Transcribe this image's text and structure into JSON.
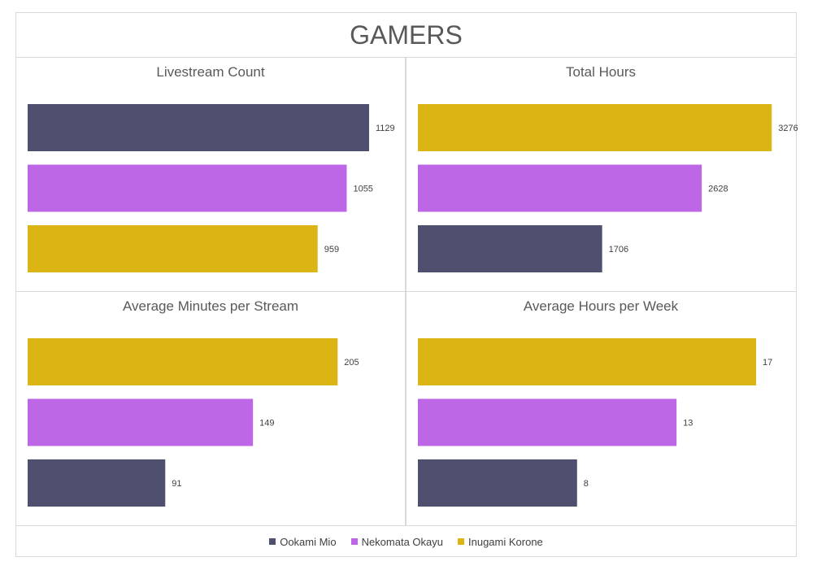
{
  "title": "GAMERS",
  "colors": {
    "Ookami Mio": "#4f4f6f",
    "Nekomata Okayu": "#bd66e6",
    "Inugami Korone": "#dbb514"
  },
  "legend": [
    "Ookami Mio",
    "Nekomata Okayu",
    "Inugami Korone"
  ],
  "chart_data": [
    {
      "type": "bar",
      "orientation": "horizontal",
      "title": "Livestream Count",
      "categories": [
        "Ookami Mio",
        "Nekomata Okayu",
        "Inugami Korone"
      ],
      "values": [
        1129,
        1055,
        959
      ],
      "xlim": [
        0,
        1250
      ]
    },
    {
      "type": "bar",
      "orientation": "horizontal",
      "title": "Total Hours",
      "categories": [
        "Inugami Korone",
        "Nekomata Okayu",
        "Ookami Mio"
      ],
      "values": [
        3276,
        2628,
        1706
      ],
      "xlim": [
        0,
        3500
      ]
    },
    {
      "type": "bar",
      "orientation": "horizontal",
      "title": "Average Minutes per Stream",
      "categories": [
        "Inugami Korone",
        "Nekomata Okayu",
        "Ookami Mio"
      ],
      "values": [
        205,
        149,
        91
      ],
      "xlim": [
        0,
        250
      ]
    },
    {
      "type": "bar",
      "orientation": "horizontal",
      "title": "Average Hours per Week",
      "categories": [
        "Inugami Korone",
        "Nekomata Okayu",
        "Ookami Mio"
      ],
      "values": [
        17,
        13,
        8
      ],
      "xlim": [
        0,
        19
      ]
    }
  ]
}
